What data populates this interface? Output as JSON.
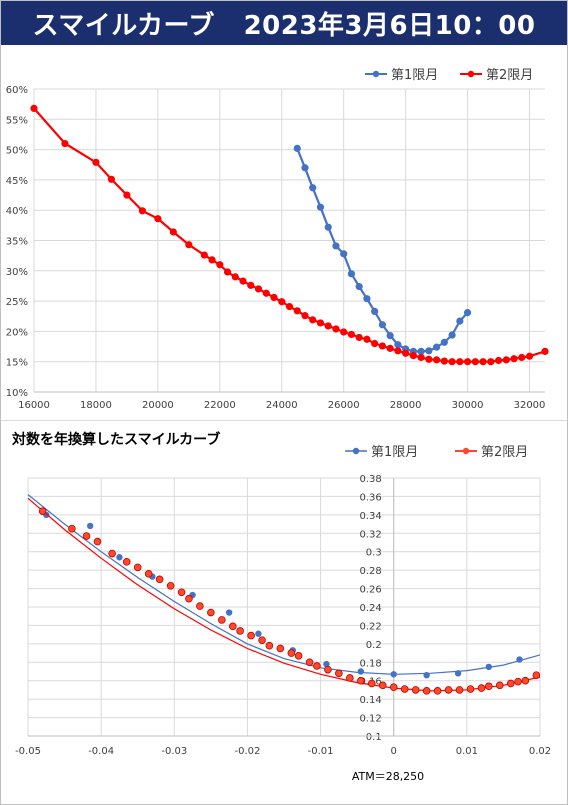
{
  "header": {
    "title": "スマイルカーブ",
    "datetime": "2023年3月6日10：00"
  },
  "chart_data": [
    {
      "type": "line",
      "title": "",
      "xlabel": "",
      "ylabel": "",
      "x_ticks": [
        "16000",
        "18000",
        "20000",
        "22000",
        "24000",
        "26000",
        "28000",
        "30000",
        "32000"
      ],
      "y_ticks": [
        "10%",
        "15%",
        "20%",
        "25%",
        "30%",
        "35%",
        "40%",
        "45%",
        "50%",
        "55%",
        "60%"
      ],
      "xlim": [
        16000,
        32500
      ],
      "ylim": [
        0.1,
        0.6
      ],
      "y_format": "percent",
      "grid": true,
      "legend": "top-right",
      "series": [
        {
          "name": "第1限月",
          "color": "#4472c4",
          "x": [
            24500,
            24750,
            25000,
            25250,
            25500,
            25750,
            26000,
            26250,
            26500,
            26750,
            27000,
            27250,
            27500,
            27750,
            28000,
            28250,
            28500,
            28750,
            29000,
            29250,
            29500,
            29750,
            30000
          ],
          "y": [
            0.502,
            0.47,
            0.437,
            0.405,
            0.372,
            0.341,
            0.328,
            0.295,
            0.274,
            0.254,
            0.233,
            0.211,
            0.193,
            0.178,
            0.171,
            0.167,
            0.167,
            0.168,
            0.174,
            0.182,
            0.194,
            0.217,
            0.231
          ]
        },
        {
          "name": "第2限月",
          "color": "#ff0000",
          "x": [
            16000,
            17000,
            18000,
            18500,
            19000,
            19500,
            20000,
            20500,
            21000,
            21500,
            21750,
            22000,
            22250,
            22500,
            22750,
            23000,
            23250,
            23500,
            23750,
            24000,
            24250,
            24500,
            24750,
            25000,
            25250,
            25500,
            25750,
            26000,
            26250,
            26500,
            26750,
            27000,
            27250,
            27500,
            27750,
            28000,
            28250,
            28500,
            28750,
            29000,
            29250,
            29500,
            29750,
            30000,
            30250,
            30500,
            30750,
            31000,
            31250,
            31500,
            31750,
            32000,
            32500
          ],
          "y": [
            0.568,
            0.51,
            0.479,
            0.451,
            0.425,
            0.399,
            0.386,
            0.364,
            0.343,
            0.326,
            0.318,
            0.31,
            0.298,
            0.29,
            0.283,
            0.276,
            0.27,
            0.263,
            0.256,
            0.249,
            0.241,
            0.234,
            0.226,
            0.219,
            0.214,
            0.209,
            0.204,
            0.199,
            0.195,
            0.19,
            0.187,
            0.18,
            0.176,
            0.172,
            0.168,
            0.164,
            0.16,
            0.157,
            0.154,
            0.153,
            0.151,
            0.15,
            0.15,
            0.15,
            0.15,
            0.15,
            0.15,
            0.152,
            0.153,
            0.155,
            0.157,
            0.159,
            0.167
          ]
        }
      ]
    },
    {
      "type": "scatter",
      "title": "対数を年換算したスマイルカーブ",
      "xlabel": "",
      "ylabel": "",
      "x_ticks": [
        "-0.05",
        "-0.04",
        "-0.03",
        "-0.02",
        "-0.01",
        "0",
        "0.01",
        "0.02"
      ],
      "y_ticks": [
        "0.1",
        "0.12",
        "0.14",
        "0.16",
        "0.18",
        "0.2",
        "0.22",
        "0.24",
        "0.26",
        "0.28",
        "0.3",
        "0.32",
        "0.34",
        "0.36",
        "0.38"
      ],
      "xlim": [
        -0.05,
        0.02
      ],
      "ylim": [
        0.1,
        0.38
      ],
      "grid": true,
      "legend": "top-right",
      "annotation": "ATM＝28,250",
      "series": [
        {
          "name": "第1限月",
          "color": "#4472c4",
          "trend": [
            [
              -0.05,
              0.362
            ],
            [
              -0.045,
              0.33
            ],
            [
              -0.04,
              0.3
            ],
            [
              -0.035,
              0.272
            ],
            [
              -0.03,
              0.246
            ],
            [
              -0.025,
              0.222
            ],
            [
              -0.02,
              0.2
            ],
            [
              -0.015,
              0.184
            ],
            [
              -0.01,
              0.174
            ],
            [
              -0.005,
              0.169
            ],
            [
              0.0,
              0.167
            ],
            [
              0.005,
              0.168
            ],
            [
              0.01,
              0.171
            ],
            [
              0.015,
              0.177
            ],
            [
              0.02,
              0.188
            ]
          ],
          "x": [
            -0.0475,
            -0.0415,
            -0.0375,
            -0.033,
            -0.0275,
            -0.0225,
            -0.0185,
            -0.0138,
            -0.0092,
            -0.0045,
            0.0,
            0.0045,
            0.0088,
            0.013,
            0.0172
          ],
          "y": [
            0.34,
            0.328,
            0.294,
            0.273,
            0.253,
            0.234,
            0.211,
            0.193,
            0.178,
            0.17,
            0.167,
            0.166,
            0.168,
            0.175,
            0.183
          ]
        },
        {
          "name": "第2限月",
          "color": "#ff0000",
          "trend": [
            [
              -0.05,
              0.358
            ],
            [
              -0.045,
              0.324
            ],
            [
              -0.04,
              0.293
            ],
            [
              -0.035,
              0.264
            ],
            [
              -0.03,
              0.238
            ],
            [
              -0.025,
              0.215
            ],
            [
              -0.02,
              0.195
            ],
            [
              -0.015,
              0.179
            ],
            [
              -0.01,
              0.167
            ],
            [
              -0.005,
              0.158
            ],
            [
              0.0,
              0.152
            ],
            [
              0.005,
              0.149
            ],
            [
              0.01,
              0.15
            ],
            [
              0.015,
              0.155
            ],
            [
              0.02,
              0.164
            ]
          ],
          "x": [
            -0.048,
            -0.044,
            -0.042,
            -0.0405,
            -0.0385,
            -0.0365,
            -0.035,
            -0.0335,
            -0.032,
            -0.0305,
            -0.029,
            -0.028,
            -0.0265,
            -0.025,
            -0.0235,
            -0.022,
            -0.021,
            -0.0195,
            -0.018,
            -0.017,
            -0.0155,
            -0.014,
            -0.013,
            -0.0115,
            -0.0105,
            -0.009,
            -0.0075,
            -0.006,
            -0.0045,
            -0.003,
            -0.0015,
            0.0,
            0.0015,
            0.003,
            0.0045,
            0.006,
            0.0075,
            0.009,
            0.0105,
            0.012,
            0.013,
            0.0145,
            0.016,
            0.017,
            0.018,
            0.0195
          ],
          "y": [
            0.344,
            0.325,
            0.317,
            0.311,
            0.298,
            0.289,
            0.283,
            0.276,
            0.27,
            0.263,
            0.256,
            0.249,
            0.241,
            0.234,
            0.226,
            0.219,
            0.214,
            0.209,
            0.204,
            0.198,
            0.195,
            0.19,
            0.187,
            0.18,
            0.176,
            0.172,
            0.168,
            0.163,
            0.16,
            0.157,
            0.155,
            0.153,
            0.151,
            0.15,
            0.149,
            0.149,
            0.15,
            0.15,
            0.151,
            0.152,
            0.154,
            0.155,
            0.157,
            0.159,
            0.16,
            0.166
          ]
        }
      ]
    }
  ]
}
